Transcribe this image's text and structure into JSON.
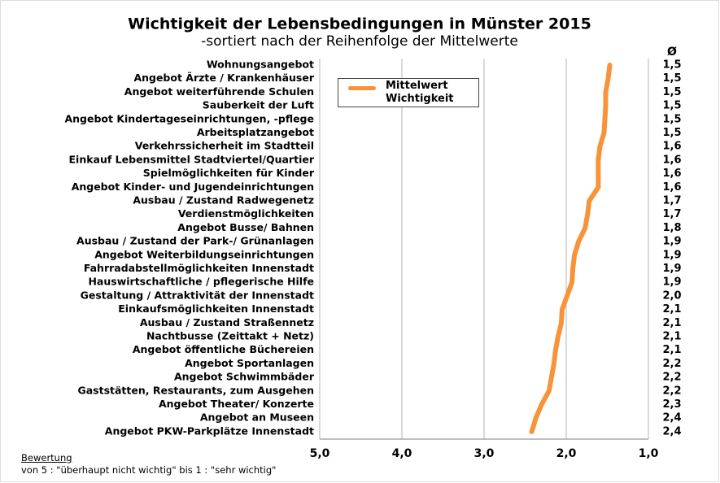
{
  "chart_data": {
    "type": "line",
    "orientation": "horizontal",
    "title": "Wichtigkeit der Lebensbedingungen in Münster 2015",
    "subtitle": "-sortiert nach der Reihenfolge der Mittelwerte",
    "value_column_header": "Ø",
    "categories": [
      "Wohnungsangebot",
      "Angebot Ärzte / Krankenhäuser",
      "Angebot weiterführende Schulen",
      "Sauberkeit der Luft",
      "Angebot Kindertageseinrichtungen, -pflege",
      "Arbeitsplatzangebot",
      "Verkehrssicherheit im Stadtteil",
      "Einkauf Lebensmittel Stadtviertel/Quartier",
      "Spielmöglichkeiten für Kinder",
      "Angebot Kinder- und Jugendeinrichtungen",
      "Ausbau / Zustand Radwegenetz",
      "Verdienstmöglichkeiten",
      "Angebot Busse/ Bahnen",
      "Ausbau / Zustand der Park-/ Grünanlagen",
      "Angebot Weiterbildungseinrichtungen",
      "Fahrradabstellmöglichkeiten Innenstadt",
      "Hauswirtschaftliche / pflegerische Hilfe",
      "Gestaltung / Attraktivität der Innenstadt",
      "Einkaufsmöglichkeiten Innenstadt",
      "Ausbau / Zustand Straßennetz",
      "Nachtbusse (Zeittakt + Netz)",
      "Angebot öffentliche Büchereien",
      "Angebot Sportanlagen",
      "Angebot Schwimmbäder",
      "Gaststätten, Restaurants, zum Ausgehen",
      "Angebot Theater/ Konzerte",
      "Angebot an Museen",
      "Angebot PKW-Parkplätze Innenstadt"
    ],
    "series": [
      {
        "name": "Mittelwert Wichtigkeit",
        "color": "#f7943a",
        "values": [
          1.47,
          1.49,
          1.52,
          1.52,
          1.53,
          1.54,
          1.59,
          1.61,
          1.61,
          1.61,
          1.72,
          1.74,
          1.77,
          1.85,
          1.9,
          1.92,
          1.93,
          1.99,
          2.05,
          2.06,
          2.1,
          2.13,
          2.15,
          2.18,
          2.21,
          2.3,
          2.37,
          2.42
        ],
        "value_labels": [
          "1,5",
          "1,5",
          "1,5",
          "1,5",
          "1,5",
          "1,5",
          "1,6",
          "1,6",
          "1,6",
          "1,6",
          "1,7",
          "1,7",
          "1,8",
          "1,9",
          "1,9",
          "1,9",
          "1,9",
          "2,0",
          "2,1",
          "2,1",
          "2,1",
          "2,1",
          "2,2",
          "2,2",
          "2,2",
          "2,3",
          "2,4",
          "2,4"
        ]
      }
    ],
    "xlim": [
      5,
      1
    ],
    "xticks": [
      {
        "value": 5,
        "label": "5,0"
      },
      {
        "value": 4,
        "label": "4,0"
      },
      {
        "value": 3,
        "label": "3,0"
      },
      {
        "value": 2,
        "label": "2,0"
      },
      {
        "value": 1,
        "label": "1,0"
      }
    ],
    "grid": true,
    "legend": "top-left",
    "annotations": [
      "Bewertung",
      "von 5 : \"überhaupt nicht wichtig\" bis 1 : \"sehr wichtig\""
    ]
  }
}
